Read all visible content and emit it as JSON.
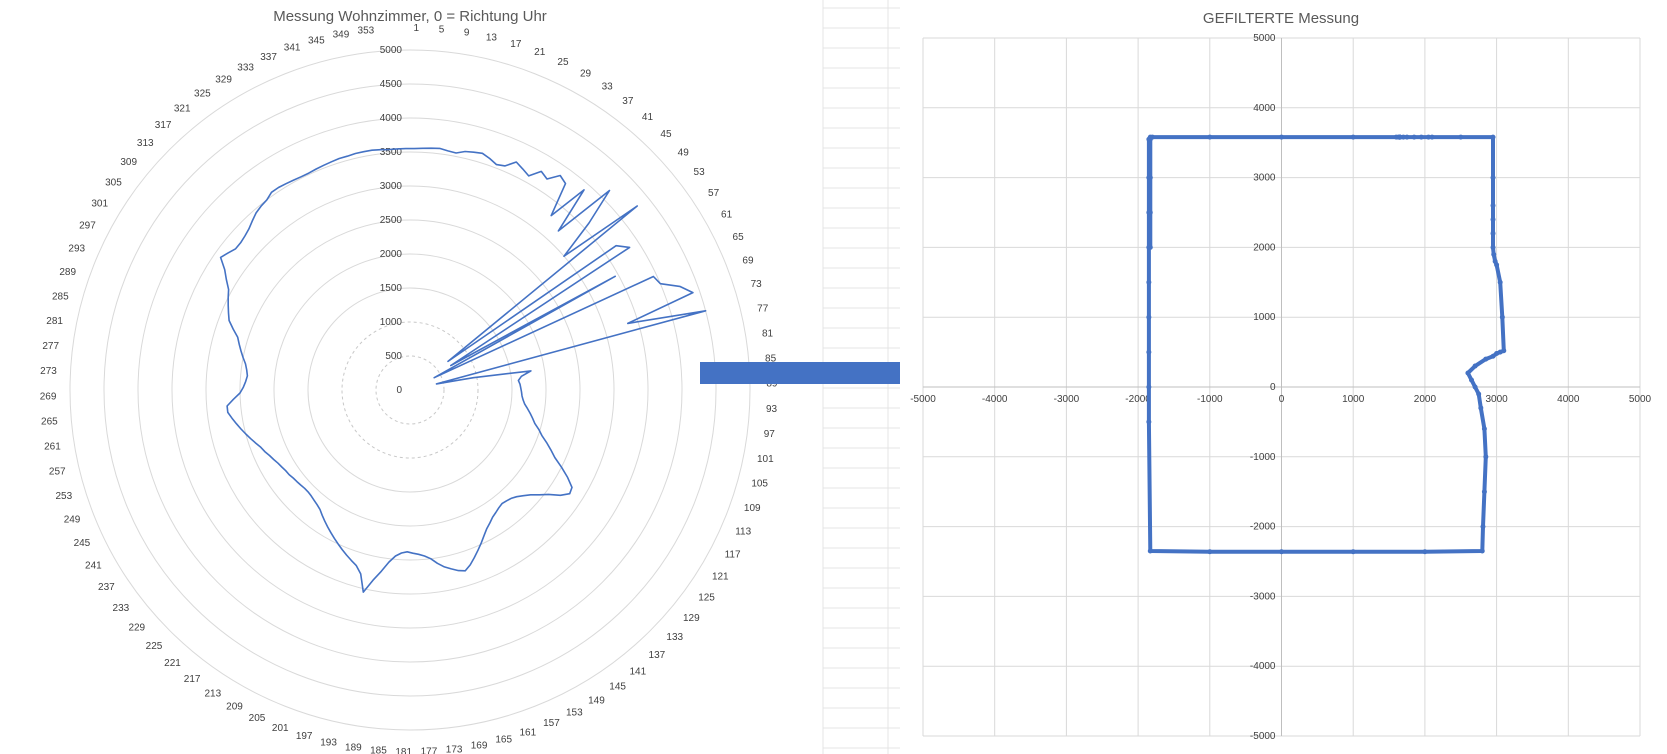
{
  "chart_data": [
    {
      "type": "polar-line",
      "title": "Messung Wohnzimmer, 0 = Richtung Uhr",
      "angle_labels": [
        "1",
        "5",
        "9",
        "13",
        "17",
        "21",
        "25",
        "29",
        "33",
        "37",
        "41",
        "45",
        "49",
        "53",
        "57",
        "61",
        "65",
        "69",
        "73",
        "77",
        "81",
        "85",
        "89",
        "93",
        "97",
        "101",
        "105",
        "109",
        "113",
        "117",
        "121",
        "125",
        "129",
        "133",
        "137",
        "141",
        "145",
        "149",
        "153",
        "157",
        "161",
        "165",
        "169",
        "173",
        "177",
        "181",
        "185",
        "189",
        "193",
        "197",
        "201",
        "205",
        "209",
        "213",
        "217",
        "221",
        "225",
        "229",
        "233",
        "237",
        "241",
        "245",
        "249",
        "253",
        "257",
        "261",
        "265",
        "269",
        "273",
        "277",
        "281",
        "285",
        "289",
        "293",
        "297",
        "301",
        "305",
        "309",
        "313",
        "317",
        "321",
        "325",
        "329",
        "333",
        "337",
        "341",
        "345",
        "349",
        "353"
      ],
      "radial_ticks": [
        0,
        500,
        1000,
        1500,
        2000,
        2500,
        3000,
        3500,
        4000,
        4500,
        5000
      ],
      "rlim": [
        0,
        5000
      ],
      "color": "#4472C4",
      "series": [
        {
          "angle": [
            1,
            3,
            5,
            7,
            9,
            11,
            13,
            15,
            17,
            19,
            21,
            23,
            25,
            27,
            29,
            31,
            33,
            35,
            37,
            39,
            41,
            43,
            45,
            47,
            49,
            51,
            53,
            55,
            57,
            59,
            61,
            63,
            65,
            67,
            69,
            71,
            73,
            75,
            77,
            79,
            81,
            83,
            85,
            87,
            89,
            91,
            93,
            95,
            97,
            99,
            101,
            103,
            105,
            107,
            109,
            111,
            113,
            115,
            117,
            119,
            121,
            123,
            125,
            127,
            129,
            131,
            133,
            135,
            137,
            139,
            141,
            143,
            145,
            147,
            149,
            151,
            153,
            155,
            157,
            159,
            161,
            163,
            165,
            167,
            169,
            171,
            173,
            175,
            177,
            179,
            181,
            183,
            185,
            187,
            189,
            191,
            193,
            195,
            197,
            199,
            201,
            203,
            205,
            207,
            209,
            211,
            213,
            215,
            217,
            219,
            221,
            223,
            225,
            227,
            229,
            231,
            233,
            235,
            237,
            239,
            241,
            243,
            245,
            247,
            249,
            251,
            253,
            255,
            257,
            259,
            261,
            263,
            265,
            267,
            269,
            271,
            273,
            275,
            277,
            279,
            281,
            283,
            285,
            287,
            289,
            291,
            293,
            295,
            297,
            299,
            301,
            303,
            305,
            307,
            309,
            311,
            313,
            315,
            317,
            319,
            321,
            323,
            325,
            327,
            329,
            331,
            333,
            335,
            337,
            339,
            341,
            343,
            345,
            347,
            349,
            351,
            353,
            355,
            357,
            359
          ],
          "r": [
            3550,
            3560,
            3570,
            3580,
            3560,
            3550,
            3600,
            3620,
            3640,
            3600,
            3550,
            3580,
            3700,
            3650,
            3600,
            3750,
            3700,
            3850,
            3800,
            3300,
            3900,
            3200,
            4150,
            3600,
            3000,
            4300,
            700,
            3700,
            3850,
            700,
            3450,
            400,
            3950,
            4000,
            4250,
            4400,
            3350,
            4500,
            400,
            950,
            1800,
            1650,
            1600,
            1620,
            1630,
            1640,
            1650,
            1670,
            1700,
            1750,
            1800,
            1850,
            1900,
            1980,
            2050,
            2150,
            2250,
            2350,
            2500,
            2650,
            2780,
            2800,
            2700,
            2550,
            2450,
            2350,
            2280,
            2220,
            2180,
            2160,
            2150,
            2170,
            2200,
            2230,
            2280,
            2330,
            2400,
            2480,
            2560,
            2640,
            2720,
            2780,
            2750,
            2700,
            2650,
            2580,
            2500,
            2450,
            2420,
            2400,
            2380,
            2400,
            2450,
            2550,
            2700,
            2850,
            3050,
            2800,
            2700,
            2650,
            2600,
            2550,
            2500,
            2450,
            2400,
            2350,
            2300,
            2250,
            2200,
            2170,
            2150,
            2130,
            2120,
            2120,
            2130,
            2140,
            2150,
            2170,
            2180,
            2200,
            2220,
            2250,
            2280,
            2320,
            2350,
            2400,
            2450,
            2500,
            2550,
            2600,
            2650,
            2700,
            2700,
            2600,
            2500,
            2450,
            2420,
            2400,
            2420,
            2450,
            2500,
            2550,
            2600,
            2650,
            2750,
            2850,
            2900,
            2950,
            3000,
            3050,
            3150,
            3250,
            3400,
            3350,
            3300,
            3300,
            3320,
            3350,
            3400,
            3450,
            3480,
            3500,
            3550,
            3550,
            3540,
            3530,
            3520,
            3520,
            3530,
            3540,
            3550,
            3560,
            3560,
            3570,
            3570,
            3570,
            3560,
            3550,
            3550,
            3550,
            3550,
            3550
          ]
        }
      ]
    },
    {
      "type": "scatter-line",
      "title": "GEFILTERTE Messung",
      "xlabel": "",
      "ylabel": "",
      "xlim": [
        -5000,
        5000
      ],
      "ylim": [
        -5000,
        5000
      ],
      "x_ticks": [
        -5000,
        -4000,
        -3000,
        -2000,
        -1000,
        0,
        1000,
        2000,
        3000,
        4000,
        5000
      ],
      "y_ticks": [
        5000,
        4000,
        3000,
        2000,
        1000,
        0,
        -1000,
        -2000,
        -3000,
        -4000,
        -5000
      ],
      "grid": true,
      "color": "#4472C4",
      "series": [
        {
          "x": [
            -1850,
            -1850,
            -1850,
            -1850,
            -1850,
            -1850,
            -1850,
            -1850,
            -1850,
            -1830,
            -1000,
            0,
            1000,
            2000,
            2800,
            2810,
            2830,
            2850,
            2830,
            2780,
            2750,
            2700,
            2650,
            2600,
            2700,
            2850,
            2950,
            3000,
            3050,
            3100,
            3080,
            3050,
            3000,
            2980,
            2960,
            2950,
            2950,
            2950,
            2950,
            2950,
            2950,
            2500,
            2100,
            2050,
            1950,
            1850,
            1750,
            1700,
            1650,
            1630,
            1650,
            1650,
            1650,
            1650,
            1650,
            1650,
            1650,
            1650,
            1650,
            1650,
            1650,
            1600,
            1000,
            0,
            -1000,
            -1800,
            -1830,
            -1830,
            -1830,
            -1830,
            -1830
          ],
          "y": [
            3550,
            3000,
            2500,
            2000,
            1500,
            1000,
            500,
            0,
            -500,
            -2350,
            -2360,
            -2360,
            -2360,
            -2360,
            -2350,
            -2000,
            -1500,
            -1000,
            -600,
            -300,
            -100,
            0,
            100,
            200,
            300,
            400,
            440,
            480,
            500,
            520,
            1000,
            1500,
            1750,
            1800,
            1900,
            2000,
            2200,
            2400,
            2600,
            3000,
            3580,
            3580,
            3580,
            3580,
            3580,
            3580,
            3580,
            3580,
            3580,
            3580,
            3580,
            3580,
            3580,
            3580,
            3580,
            3580,
            3580,
            3580,
            3580,
            3580,
            3580,
            3580,
            3580,
            3580,
            3580,
            3580,
            3580,
            3000,
            2500,
            2000,
            3550
          ]
        }
      ]
    }
  ]
}
